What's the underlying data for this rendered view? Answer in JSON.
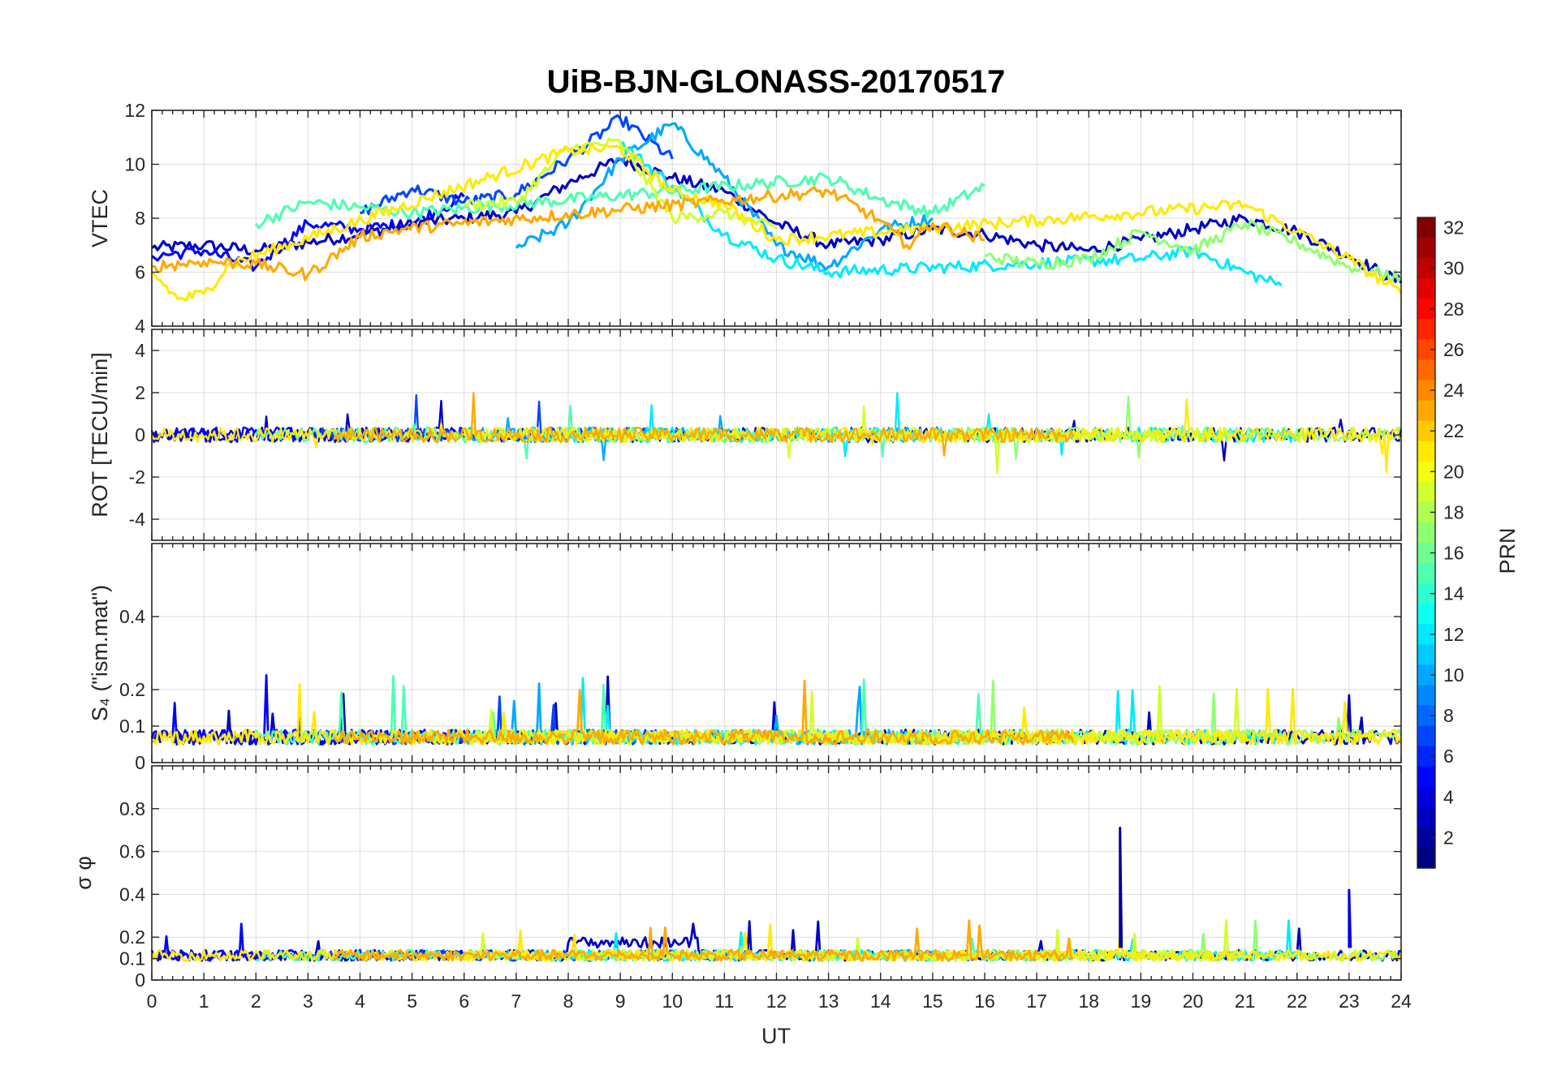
{
  "chart_data": {
    "type": "line",
    "title": "UiB-BJN-GLONASS-20170517",
    "xlabel": "UT",
    "xlim": [
      0,
      24
    ],
    "xticks": [
      "0",
      "1",
      "2",
      "3",
      "4",
      "5",
      "6",
      "7",
      "8",
      "9",
      "10",
      "11",
      "12",
      "13",
      "14",
      "15",
      "16",
      "17",
      "18",
      "19",
      "20",
      "21",
      "22",
      "23",
      "24"
    ],
    "colorbar": {
      "label": "PRN",
      "range": [
        1,
        32
      ],
      "ticks": [
        "2",
        "4",
        "6",
        "8",
        "10",
        "12",
        "14",
        "16",
        "18",
        "20",
        "22",
        "24",
        "26",
        "28",
        "30",
        "32"
      ],
      "colormap": "jet"
    },
    "panels": [
      {
        "ylabel": "VTEC",
        "ylim": [
          4,
          12
        ],
        "yticks": [
          "4",
          "6",
          "8",
          "10",
          "12"
        ],
        "series": [
          {
            "prn": 3,
            "x": [
              0,
              1,
              2,
              3,
              4,
              5,
              6,
              7,
              8,
              9,
              10,
              11,
              12,
              13,
              14,
              15,
              16,
              17,
              18,
              19,
              20,
              21,
              22,
              23,
              24
            ],
            "y": [
              6.9,
              7.0,
              6.8,
              7.1,
              7.4,
              7.8,
              8.0,
              8.2,
              9.3,
              10.2,
              9.5,
              9.0,
              7.8,
              7.0,
              7.2,
              7.6,
              7.4,
              7.0,
              6.8,
              7.2,
              7.6,
              8.0,
              7.5,
              6.6,
              5.6
            ]
          },
          {
            "prn": 5,
            "x": [
              0,
              1,
              2,
              3,
              4,
              5,
              6
            ],
            "y": [
              6.6,
              6.8,
              6.2,
              7.8,
              7.6,
              7.8,
              8.8
            ]
          },
          {
            "prn": 7,
            "x": [
              4,
              5,
              6,
              7,
              8,
              9,
              10
            ],
            "y": [
              8.2,
              9.1,
              8.6,
              8.9,
              10.2,
              11.7,
              10.2
            ]
          },
          {
            "prn": 10,
            "x": [
              7,
              8,
              9,
              10,
              11,
              12,
              13,
              14,
              15
            ],
            "y": [
              6.9,
              7.8,
              10.2,
              11.5,
              9.5,
              7.0,
              6.2,
              7.6,
              8.0
            ]
          },
          {
            "prn": 12,
            "x": [
              9,
              10,
              11,
              12,
              13,
              19,
              20,
              21,
              21.7
            ],
            "y": [
              10.8,
              9.2,
              7.4,
              6.5,
              6.0,
              6.5,
              6.8,
              6.0,
              5.5
            ]
          },
          {
            "prn": 15,
            "x": [
              2,
              3,
              4,
              5,
              13,
              14,
              15,
              16
            ],
            "y": [
              7.8,
              8.6,
              8.4,
              8.2,
              9.5,
              8.7,
              8.2,
              9.2
            ]
          },
          {
            "prn": 17,
            "x": [
              16,
              17,
              18,
              19,
              20,
              21,
              22,
              23,
              24
            ],
            "y": [
              6.6,
              6.3,
              6.5,
              7.5,
              6.8,
              7.8,
              7.1,
              6.2,
              5.8
            ]
          },
          {
            "prn": 19,
            "x": [
              6,
              7,
              8,
              9,
              10,
              11,
              12
            ],
            "y": [
              8.5,
              8.6,
              10.6,
              10.8,
              8.0,
              8.2,
              7.6
            ]
          },
          {
            "prn": 21,
            "x": [
              0,
              0.5,
              1,
              1.5,
              8,
              9,
              10,
              11,
              12,
              21,
              22,
              23,
              24
            ],
            "y": [
              6.0,
              5.0,
              5.2,
              6.3,
              10.5,
              10.6,
              9.0,
              8.5,
              7.2,
              8.5,
              7.5,
              6.5,
              5.2
            ]
          },
          {
            "prn": 23,
            "x": [
              0,
              1,
              2,
              3,
              4,
              4.8,
              13,
              14,
              14.5,
              15,
              16
            ],
            "y": [
              6.2,
              6.4,
              6.3,
              5.9,
              7.3,
              7.6,
              9.0,
              7.9,
              7.0,
              7.8,
              7.2
            ]
          }
        ]
      },
      {
        "ylabel": "ROT [TECU/min]",
        "ylim": [
          -5,
          5
        ],
        "yticks": [
          "-4",
          "-2",
          "0",
          "2",
          "4"
        ]
      },
      {
        "ylabel": "S₄ (\"ism.mat\")",
        "ylim": [
          0,
          0.6
        ],
        "yticks": [
          "0",
          "0.1",
          "0.2",
          "0.4"
        ]
      },
      {
        "ylabel": "σ φ",
        "ylim": [
          0,
          1
        ],
        "yticks": [
          "0",
          "0.1",
          "0.2",
          "0.4",
          "0.6",
          "0.8"
        ]
      }
    ]
  }
}
